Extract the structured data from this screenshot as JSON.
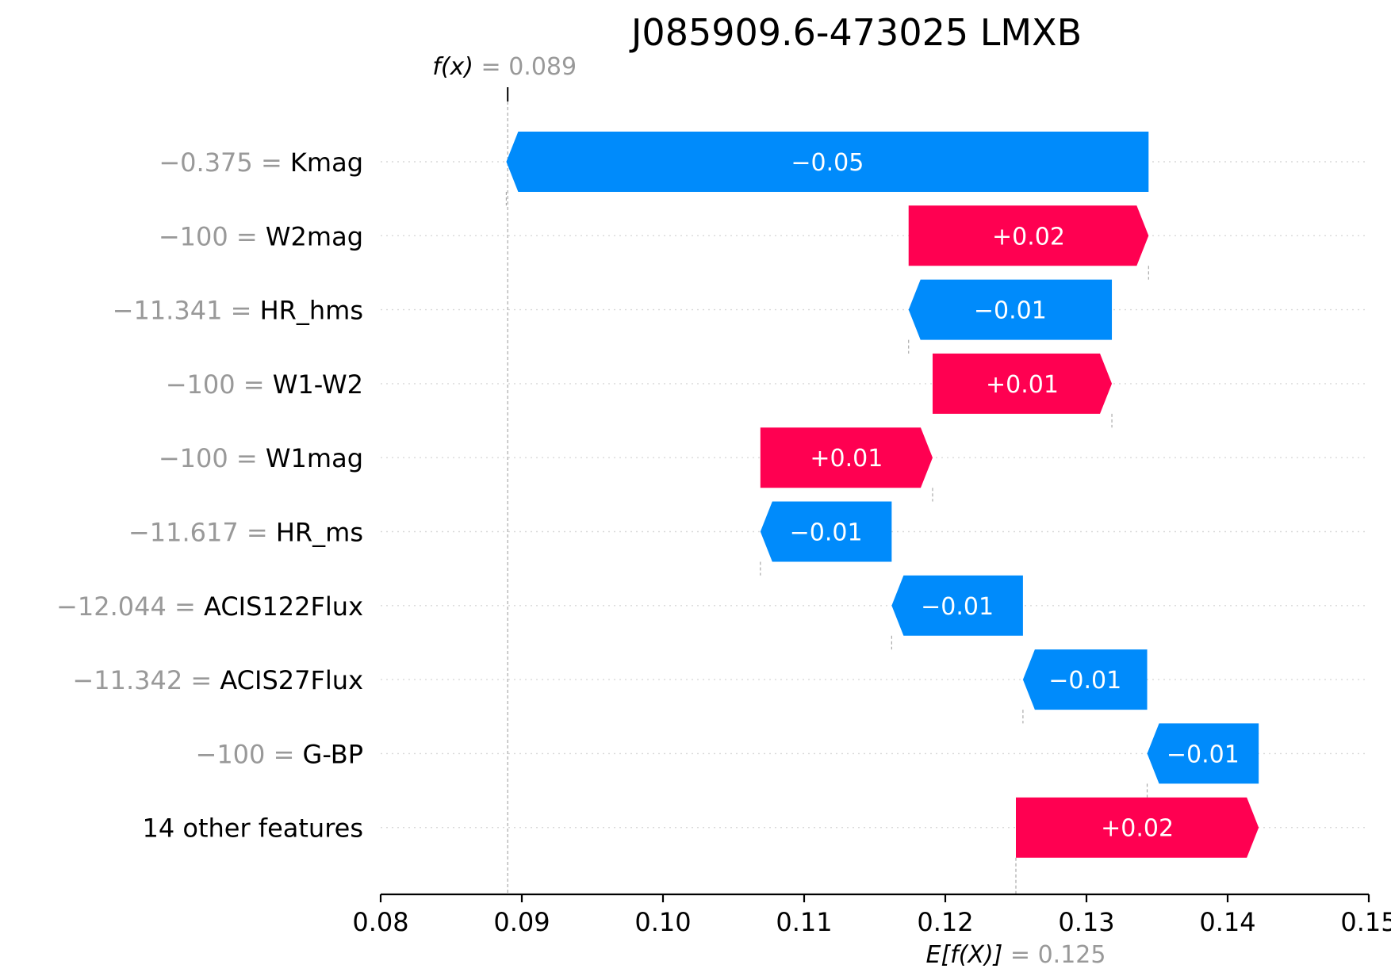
{
  "chart_data": {
    "type": "bar",
    "subtype": "shap-waterfall",
    "title": "J085909.6-473025 LMXB",
    "base_value": 0.125,
    "output_value": 0.089,
    "base_label": {
      "name": "E[f(X)]",
      "value": "= 0.125"
    },
    "output_label": {
      "name": "f(x)",
      "value": "= 0.089"
    },
    "xlim": [
      0.08,
      0.15
    ],
    "xticks": [
      0.08,
      0.09,
      0.1,
      0.11,
      0.12,
      0.13,
      0.14,
      0.15
    ],
    "xtick_labels": [
      "0.08",
      "0.09",
      "0.10",
      "0.11",
      "0.12",
      "0.13",
      "0.14",
      "0.15"
    ],
    "features": [
      {
        "value": "−0.375 =",
        "name": "Kmag",
        "start": 0.1344,
        "end": 0.0889,
        "label": "−0.05"
      },
      {
        "value": "−100 =",
        "name": "W2mag",
        "start": 0.1174,
        "end": 0.1344,
        "label": "+0.02"
      },
      {
        "value": "−11.341 =",
        "name": "HR_hms",
        "start": 0.1318,
        "end": 0.1174,
        "label": "−0.01"
      },
      {
        "value": "−100 =",
        "name": "W1-W2",
        "start": 0.1191,
        "end": 0.1318,
        "label": "+0.01"
      },
      {
        "value": "−100 =",
        "name": "W1mag",
        "start": 0.1069,
        "end": 0.1191,
        "label": "+0.01"
      },
      {
        "value": "−11.617 =",
        "name": "HR_ms",
        "start": 0.1162,
        "end": 0.1069,
        "label": "−0.01"
      },
      {
        "value": "−12.044 =",
        "name": "ACIS122Flux",
        "start": 0.1255,
        "end": 0.1162,
        "label": "−0.01"
      },
      {
        "value": "−11.342 =",
        "name": "ACIS27Flux",
        "start": 0.1343,
        "end": 0.1255,
        "label": "−0.01"
      },
      {
        "value": "−100 =",
        "name": "G-BP",
        "start": 0.1422,
        "end": 0.1343,
        "label": "−0.01"
      },
      {
        "value": "",
        "name": "14 other features",
        "start": 0.125,
        "end": 0.1422,
        "label": "+0.02"
      }
    ],
    "colors": {
      "positive": "#ff0051",
      "negative": "#008bfb"
    },
    "grid": "dotted horizontal per row"
  }
}
